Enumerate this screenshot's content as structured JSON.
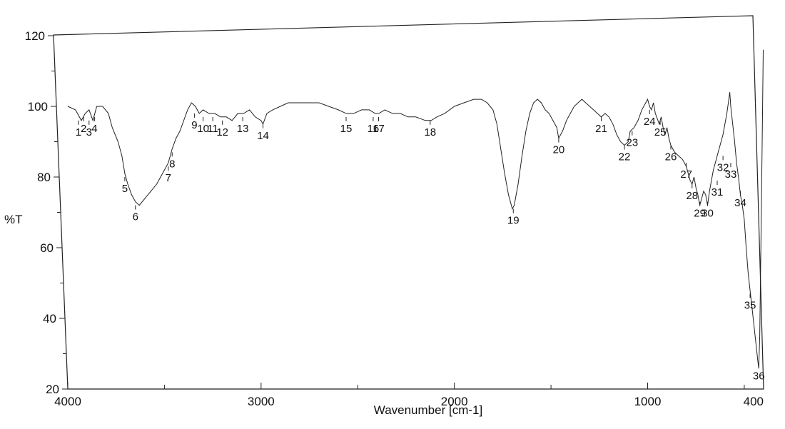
{
  "chart_data": {
    "type": "line",
    "xlabel": "Wavenumber [cm-1]",
    "ylabel": "%T",
    "xlim": [
      4000,
      400
    ],
    "ylim": [
      20,
      120
    ],
    "x_ticks": [
      4000,
      3000,
      2000,
      1000,
      400
    ],
    "y_ticks": [
      20,
      40,
      60,
      80,
      100,
      120
    ],
    "grid": false,
    "series": [
      {
        "color": "#222222",
        "points": [
          [
            4000,
            100
          ],
          [
            3960,
            99
          ],
          [
            3930,
            96
          ],
          [
            3910,
            98
          ],
          [
            3890,
            99
          ],
          [
            3870,
            96
          ],
          [
            3850,
            100
          ],
          [
            3820,
            100
          ],
          [
            3790,
            98
          ],
          [
            3770,
            94
          ],
          [
            3740,
            90
          ],
          [
            3720,
            86
          ],
          [
            3705,
            81
          ],
          [
            3690,
            78
          ],
          [
            3670,
            75
          ],
          [
            3650,
            73
          ],
          [
            3630,
            72
          ],
          [
            3600,
            74
          ],
          [
            3570,
            76
          ],
          [
            3540,
            78
          ],
          [
            3520,
            80
          ],
          [
            3500,
            82
          ],
          [
            3480,
            84
          ],
          [
            3460,
            88
          ],
          [
            3440,
            91
          ],
          [
            3420,
            93
          ],
          [
            3400,
            96
          ],
          [
            3380,
            99
          ],
          [
            3360,
            101
          ],
          [
            3340,
            100
          ],
          [
            3320,
            98
          ],
          [
            3300,
            99
          ],
          [
            3270,
            98
          ],
          [
            3240,
            98
          ],
          [
            3210,
            97
          ],
          [
            3180,
            97
          ],
          [
            3150,
            96
          ],
          [
            3120,
            98
          ],
          [
            3090,
            98
          ],
          [
            3060,
            99
          ],
          [
            3030,
            97
          ],
          [
            3000,
            96
          ],
          [
            2990,
            95
          ],
          [
            2970,
            98
          ],
          [
            2940,
            99
          ],
          [
            2900,
            100
          ],
          [
            2860,
            101
          ],
          [
            2800,
            101
          ],
          [
            2750,
            101
          ],
          [
            2700,
            101
          ],
          [
            2650,
            100
          ],
          [
            2600,
            99
          ],
          [
            2560,
            98
          ],
          [
            2520,
            98
          ],
          [
            2480,
            99
          ],
          [
            2440,
            99
          ],
          [
            2410,
            98
          ],
          [
            2390,
            98
          ],
          [
            2360,
            99
          ],
          [
            2320,
            98
          ],
          [
            2280,
            98
          ],
          [
            2240,
            97
          ],
          [
            2200,
            97
          ],
          [
            2150,
            96
          ],
          [
            2120,
            96
          ],
          [
            2090,
            97
          ],
          [
            2050,
            98
          ],
          [
            2000,
            100
          ],
          [
            1950,
            101
          ],
          [
            1900,
            102
          ],
          [
            1860,
            102
          ],
          [
            1830,
            101
          ],
          [
            1800,
            99
          ],
          [
            1780,
            95
          ],
          [
            1760,
            88
          ],
          [
            1740,
            81
          ],
          [
            1720,
            75
          ],
          [
            1700,
            71
          ],
          [
            1690,
            72
          ],
          [
            1670,
            78
          ],
          [
            1650,
            86
          ],
          [
            1630,
            93
          ],
          [
            1610,
            98
          ],
          [
            1590,
            101
          ],
          [
            1570,
            102
          ],
          [
            1550,
            101
          ],
          [
            1530,
            99
          ],
          [
            1510,
            98
          ],
          [
            1490,
            96
          ],
          [
            1470,
            94
          ],
          [
            1460,
            91
          ],
          [
            1440,
            93
          ],
          [
            1420,
            96
          ],
          [
            1400,
            98
          ],
          [
            1380,
            100
          ],
          [
            1360,
            101
          ],
          [
            1340,
            102
          ],
          [
            1320,
            101
          ],
          [
            1300,
            100
          ],
          [
            1280,
            99
          ],
          [
            1260,
            98
          ],
          [
            1240,
            97
          ],
          [
            1220,
            98
          ],
          [
            1200,
            97
          ],
          [
            1180,
            95
          ],
          [
            1160,
            92
          ],
          [
            1140,
            90
          ],
          [
            1120,
            89
          ],
          [
            1100,
            90
          ],
          [
            1090,
            93
          ],
          [
            1070,
            94
          ],
          [
            1050,
            96
          ],
          [
            1030,
            99
          ],
          [
            1010,
            101
          ],
          [
            1000,
            102
          ],
          [
            990,
            100
          ],
          [
            980,
            99
          ],
          [
            970,
            101
          ],
          [
            960,
            98
          ],
          [
            940,
            95
          ],
          [
            930,
            97
          ],
          [
            920,
            94
          ],
          [
            910,
            92
          ],
          [
            900,
            94
          ],
          [
            890,
            91
          ],
          [
            880,
            89
          ],
          [
            860,
            87
          ],
          [
            840,
            86
          ],
          [
            820,
            85
          ],
          [
            800,
            83
          ],
          [
            790,
            81
          ],
          [
            780,
            79
          ],
          [
            770,
            78
          ],
          [
            760,
            80
          ],
          [
            750,
            77
          ],
          [
            740,
            75
          ],
          [
            730,
            72
          ],
          [
            720,
            74
          ],
          [
            710,
            76
          ],
          [
            700,
            75
          ],
          [
            690,
            72
          ],
          [
            680,
            76
          ],
          [
            670,
            79
          ],
          [
            660,
            82
          ],
          [
            650,
            84
          ],
          [
            640,
            86
          ],
          [
            630,
            88
          ],
          [
            620,
            90
          ],
          [
            610,
            92
          ],
          [
            600,
            95
          ],
          [
            590,
            98
          ],
          [
            580,
            102
          ],
          [
            575,
            104
          ],
          [
            570,
            100
          ],
          [
            560,
            95
          ],
          [
            550,
            90
          ],
          [
            540,
            84
          ],
          [
            530,
            80
          ],
          [
            520,
            75
          ],
          [
            510,
            72
          ],
          [
            500,
            68
          ],
          [
            490,
            60
          ],
          [
            480,
            53
          ],
          [
            470,
            48
          ],
          [
            460,
            43
          ],
          [
            450,
            38
          ],
          [
            440,
            33
          ],
          [
            430,
            28
          ],
          [
            425,
            26
          ],
          [
            420,
            35
          ],
          [
            415,
            55
          ],
          [
            410,
            78
          ],
          [
            405,
            100
          ],
          [
            402,
            116
          ]
        ]
      }
    ],
    "peaks": [
      {
        "label": "1",
        "x": 3945,
        "y": 96
      },
      {
        "label": "2",
        "x": 3918,
        "y": 97
      },
      {
        "label": "3",
        "x": 3890,
        "y": 96
      },
      {
        "label": "4",
        "x": 3862,
        "y": 97
      },
      {
        "label": "5",
        "x": 3705,
        "y": 80
      },
      {
        "label": "6",
        "x": 3650,
        "y": 72
      },
      {
        "label": "7",
        "x": 3480,
        "y": 83
      },
      {
        "label": "8",
        "x": 3460,
        "y": 87
      },
      {
        "label": "9",
        "x": 3345,
        "y": 98
      },
      {
        "label": "10",
        "x": 3300,
        "y": 97
      },
      {
        "label": "11",
        "x": 3250,
        "y": 97
      },
      {
        "label": "12",
        "x": 3200,
        "y": 96
      },
      {
        "label": "13",
        "x": 3095,
        "y": 97
      },
      {
        "label": "14",
        "x": 2990,
        "y": 95
      },
      {
        "label": "15",
        "x": 2560,
        "y": 97
      },
      {
        "label": "16",
        "x": 2420,
        "y": 97
      },
      {
        "label": "17",
        "x": 2392,
        "y": 97
      },
      {
        "label": "18",
        "x": 2125,
        "y": 96
      },
      {
        "label": "19",
        "x": 1695,
        "y": 71
      },
      {
        "label": "20",
        "x": 1460,
        "y": 91
      },
      {
        "label": "21",
        "x": 1240,
        "y": 97
      },
      {
        "label": "22",
        "x": 1120,
        "y": 89
      },
      {
        "label": "23",
        "x": 1080,
        "y": 93
      },
      {
        "label": "24",
        "x": 990,
        "y": 99
      },
      {
        "label": "25",
        "x": 935,
        "y": 96
      },
      {
        "label": "26",
        "x": 880,
        "y": 89
      },
      {
        "label": "27",
        "x": 800,
        "y": 84
      },
      {
        "label": "28",
        "x": 770,
        "y": 78
      },
      {
        "label": "29",
        "x": 730,
        "y": 73
      },
      {
        "label": "30",
        "x": 690,
        "y": 73
      },
      {
        "label": "31",
        "x": 640,
        "y": 79
      },
      {
        "label": "32",
        "x": 610,
        "y": 86
      },
      {
        "label": "33",
        "x": 570,
        "y": 84
      },
      {
        "label": "34",
        "x": 520,
        "y": 76
      },
      {
        "label": "35",
        "x": 470,
        "y": 47
      },
      {
        "label": "36",
        "x": 425,
        "y": 27
      }
    ]
  }
}
